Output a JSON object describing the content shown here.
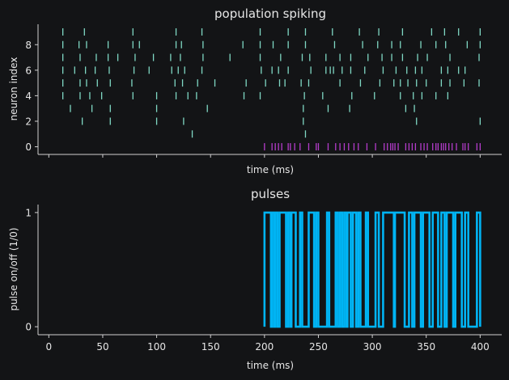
{
  "chart_data": [
    {
      "type": "scatter",
      "title": "population spiking",
      "xlabel": "time (ms)",
      "ylabel": "neuron index",
      "xlim": [
        -10,
        420
      ],
      "ylim": [
        -0.6,
        9.6
      ],
      "yticks": [
        "0",
        "2",
        "4",
        "6",
        "8"
      ],
      "marker": "vertical tick",
      "series": [
        {
          "color": "#7fd8c4",
          "neurons": [
            {
              "index": 9,
              "times": [
                13,
                33,
                78,
                118,
                142,
                196,
                222,
                238,
                263,
                288,
                306,
                328,
                355,
                367,
                380,
                400
              ]
            },
            {
              "index": 8,
              "times": [
                13,
                28,
                35,
                55,
                78,
                84,
                118,
                123,
                143,
                180,
                196,
                208,
                222,
                238,
                265,
                291,
                305,
                318,
                326,
                345,
                359,
                368,
                388,
                400
              ]
            },
            {
              "index": 7,
              "times": [
                13,
                29,
                44,
                55,
                64,
                80,
                97,
                113,
                122,
                143,
                168,
                196,
                215,
                235,
                242,
                257,
                270,
                280,
                296,
                309,
                318,
                328,
                342,
                351,
                372,
                399
              ]
            },
            {
              "index": 6,
              "times": [
                13,
                24,
                34,
                43,
                56,
                79,
                93,
                114,
                120,
                126,
                142,
                197,
                207,
                213,
                222,
                243,
                257,
                261,
                264,
                272,
                280,
                293,
                310,
                322,
                332,
                340,
                346,
                364,
                370,
                380,
                386
              ]
            },
            {
              "index": 5,
              "times": [
                13,
                29,
                35,
                45,
                57,
                77,
                117,
                124,
                138,
                154,
                183,
                201,
                214,
                219,
                234,
                241,
                270,
                289,
                307,
                320,
                326,
                333,
                341,
                350,
                364,
                372,
                385,
                399
              ]
            },
            {
              "index": 4,
              "times": [
                13,
                29,
                38,
                49,
                78,
                100,
                118,
                129,
                137,
                181,
                196,
                237,
                254,
                281,
                302,
                326,
                338,
                346,
                359,
                370
              ]
            },
            {
              "index": 3,
              "times": [
                20,
                40,
                57,
                100,
                147,
                236,
                259,
                279,
                331,
                339
              ]
            },
            {
              "index": 2,
              "times": [
                31,
                57,
                100,
                125,
                236,
                341,
                400
              ]
            },
            {
              "index": 1,
              "times": [
                133,
                238
              ]
            }
          ]
        },
        {
          "color": "#b43ccb",
          "neurons": [
            {
              "index": 0,
              "times": [
                200,
                207,
                210,
                213,
                216,
                222,
                224,
                228,
                233,
                241,
                248,
                250,
                259,
                266,
                270,
                274,
                278,
                283,
                287,
                295,
                303,
                311,
                314,
                317,
                319,
                321,
                324,
                331,
                334,
                337,
                340,
                345,
                348,
                351,
                356,
                359,
                361,
                364,
                366,
                368,
                371,
                374,
                378,
                384,
                386,
                389,
                397,
                400
              ]
            }
          ]
        }
      ]
    },
    {
      "type": "line",
      "title": "pulses",
      "xlabel": "time (ms)",
      "ylabel": "pulse on/off (1/0)",
      "xlim": [
        -10,
        420
      ],
      "ylim": [
        -0.07,
        1.07
      ],
      "xticks": [
        "0",
        "50",
        "100",
        "150",
        "200",
        "250",
        "300",
        "350",
        "400"
      ],
      "yticks": [
        "0",
        "1"
      ],
      "series": [
        {
          "color": "#00b4f4",
          "on_intervals": [
            [
              200,
              206
            ],
            [
              207,
              209
            ],
            [
              210,
              212
            ],
            [
              214,
              220
            ],
            [
              222,
              224
            ],
            [
              225,
              229
            ],
            [
              233,
              235
            ],
            [
              241,
              246
            ],
            [
              248,
              250
            ],
            [
              258,
              260
            ],
            [
              266,
              268
            ],
            [
              270,
              272
            ],
            [
              274,
              276
            ],
            [
              277,
              280
            ],
            [
              282,
              285
            ],
            [
              287,
              289
            ],
            [
              294,
              296
            ],
            [
              303,
              306
            ],
            [
              310,
              320
            ],
            [
              321,
              330
            ],
            [
              334,
              337
            ],
            [
              339,
              345
            ],
            [
              347,
              353
            ],
            [
              356,
              361
            ],
            [
              364,
              367
            ],
            [
              369,
              375
            ],
            [
              377,
              383
            ],
            [
              386,
              389
            ],
            [
              397,
              400
            ]
          ]
        }
      ]
    }
  ]
}
